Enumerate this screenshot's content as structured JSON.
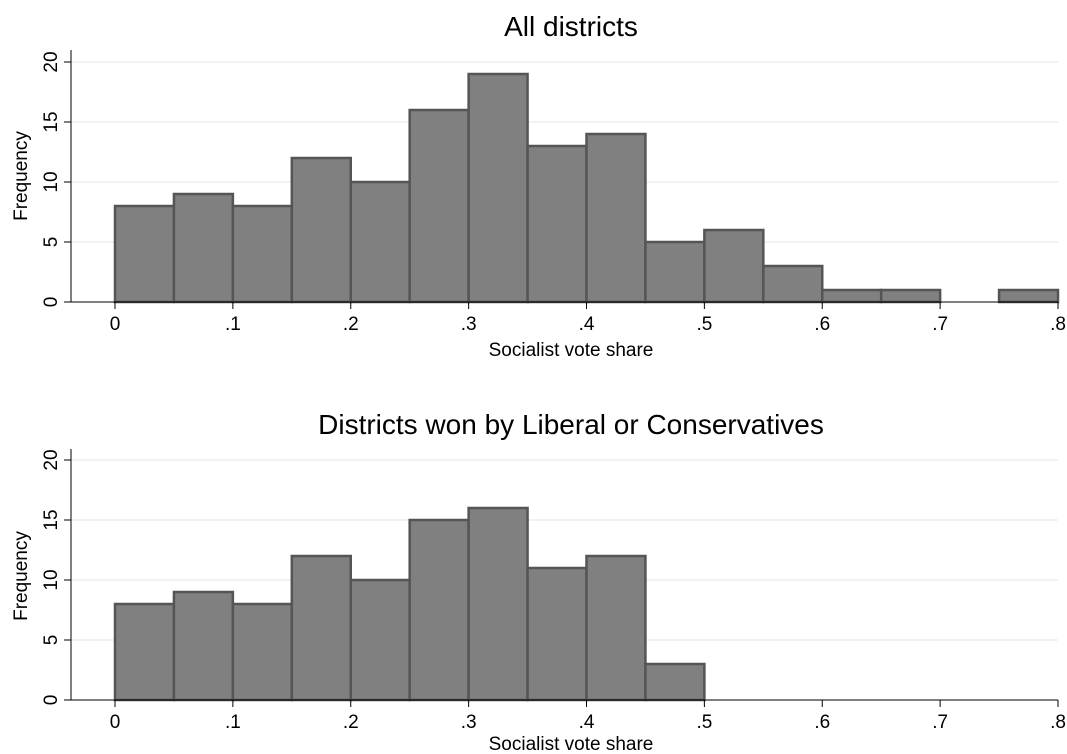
{
  "colors": {
    "bar_fill": "#808080",
    "bar_edge": "#555555",
    "grid": "#e6e6e6",
    "axis": "#000000",
    "background": "#ffffff"
  },
  "chart_data": [
    {
      "type": "bar",
      "title": "All districts",
      "xlabel": "Socialist vote share",
      "ylabel": "Frequency",
      "xlim": [
        0,
        0.8
      ],
      "ylim": [
        0,
        20
      ],
      "grid": true,
      "bin_width": 0.05,
      "bins": [
        {
          "x0": 0.0,
          "x1": 0.05,
          "value": 8
        },
        {
          "x0": 0.05,
          "x1": 0.1,
          "value": 9
        },
        {
          "x0": 0.1,
          "x1": 0.15,
          "value": 8
        },
        {
          "x0": 0.15,
          "x1": 0.2,
          "value": 12
        },
        {
          "x0": 0.2,
          "x1": 0.25,
          "value": 10
        },
        {
          "x0": 0.25,
          "x1": 0.3,
          "value": 16
        },
        {
          "x0": 0.3,
          "x1": 0.35,
          "value": 19
        },
        {
          "x0": 0.35,
          "x1": 0.4,
          "value": 13
        },
        {
          "x0": 0.4,
          "x1": 0.45,
          "value": 14
        },
        {
          "x0": 0.45,
          "x1": 0.5,
          "value": 5
        },
        {
          "x0": 0.5,
          "x1": 0.55,
          "value": 6
        },
        {
          "x0": 0.55,
          "x1": 0.6,
          "value": 3
        },
        {
          "x0": 0.6,
          "x1": 0.65,
          "value": 1
        },
        {
          "x0": 0.65,
          "x1": 0.7,
          "value": 1
        },
        {
          "x0": 0.75,
          "x1": 0.8,
          "value": 1
        }
      ],
      "x_ticks": [
        {
          "value": 0,
          "label": "0"
        },
        {
          "value": 0.1,
          "label": ".1"
        },
        {
          "value": 0.2,
          "label": ".2"
        },
        {
          "value": 0.3,
          "label": ".3"
        },
        {
          "value": 0.4,
          "label": ".4"
        },
        {
          "value": 0.5,
          "label": ".5"
        },
        {
          "value": 0.6,
          "label": ".6"
        },
        {
          "value": 0.7,
          "label": ".7"
        },
        {
          "value": 0.8,
          "label": ".8"
        }
      ],
      "y_ticks": [
        {
          "value": 0,
          "label": "0"
        },
        {
          "value": 5,
          "label": "5"
        },
        {
          "value": 10,
          "label": "10"
        },
        {
          "value": 15,
          "label": "15"
        },
        {
          "value": 20,
          "label": "20"
        }
      ]
    },
    {
      "type": "bar",
      "title": "Districts won by Liberal or Conservatives",
      "xlabel": "Socialist vote share",
      "ylabel": "Frequency",
      "xlim": [
        0,
        0.8
      ],
      "ylim": [
        0,
        20
      ],
      "grid": true,
      "bin_width": 0.05,
      "bins": [
        {
          "x0": 0.0,
          "x1": 0.05,
          "value": 8
        },
        {
          "x0": 0.05,
          "x1": 0.1,
          "value": 9
        },
        {
          "x0": 0.1,
          "x1": 0.15,
          "value": 8
        },
        {
          "x0": 0.15,
          "x1": 0.2,
          "value": 12
        },
        {
          "x0": 0.2,
          "x1": 0.25,
          "value": 10
        },
        {
          "x0": 0.25,
          "x1": 0.3,
          "value": 15
        },
        {
          "x0": 0.3,
          "x1": 0.35,
          "value": 16
        },
        {
          "x0": 0.35,
          "x1": 0.4,
          "value": 11
        },
        {
          "x0": 0.4,
          "x1": 0.45,
          "value": 12
        },
        {
          "x0": 0.45,
          "x1": 0.5,
          "value": 3
        }
      ],
      "x_ticks": [
        {
          "value": 0,
          "label": "0"
        },
        {
          "value": 0.1,
          "label": ".1"
        },
        {
          "value": 0.2,
          "label": ".2"
        },
        {
          "value": 0.3,
          "label": ".3"
        },
        {
          "value": 0.4,
          "label": ".4"
        },
        {
          "value": 0.5,
          "label": ".5"
        },
        {
          "value": 0.6,
          "label": ".6"
        },
        {
          "value": 0.7,
          "label": ".7"
        },
        {
          "value": 0.8,
          "label": ".8"
        }
      ],
      "y_ticks": [
        {
          "value": 0,
          "label": "0"
        },
        {
          "value": 5,
          "label": "5"
        },
        {
          "value": 10,
          "label": "10"
        },
        {
          "value": 15,
          "label": "15"
        },
        {
          "value": 20,
          "label": "20"
        }
      ]
    }
  ]
}
